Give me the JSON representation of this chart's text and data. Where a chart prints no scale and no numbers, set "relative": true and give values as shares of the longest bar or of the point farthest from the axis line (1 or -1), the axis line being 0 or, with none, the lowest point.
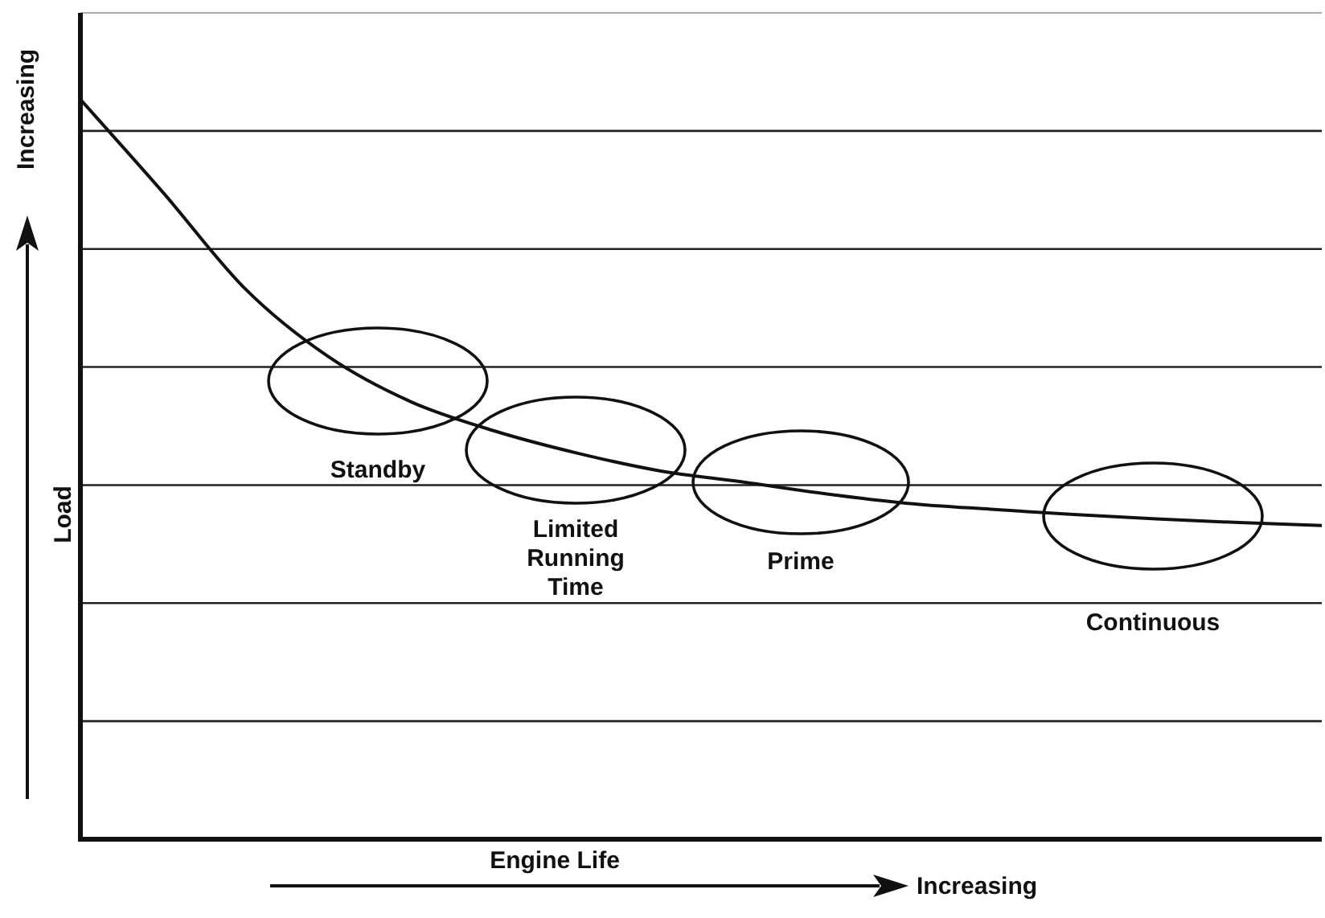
{
  "chart_data": {
    "type": "line",
    "relative": true,
    "xlabel": "Engine Life",
    "ylabel": "Load",
    "categories": [
      null,
      null,
      null,
      null,
      null,
      null,
      null,
      null,
      null,
      null,
      null,
      null,
      null,
      null,
      null,
      null
    ],
    "series": [
      {
        "color": "#111111",
        "values": [
          1,
          0.874,
          0.743,
          0.652,
          0.591,
          0.552,
          0.522,
          0.498,
          0.483,
          0.467,
          0.454,
          0.446,
          0.439,
          0.433,
          0.428,
          0.424
        ]
      }
    ],
    "annotations": [
      "Standby",
      "Limited\nRunning\nTime",
      "Prime",
      "Continuous",
      "Increasing",
      "Increasing"
    ],
    "grid": "y",
    "marker": "none",
    "line_style": "solid",
    "legend": false
  }
}
